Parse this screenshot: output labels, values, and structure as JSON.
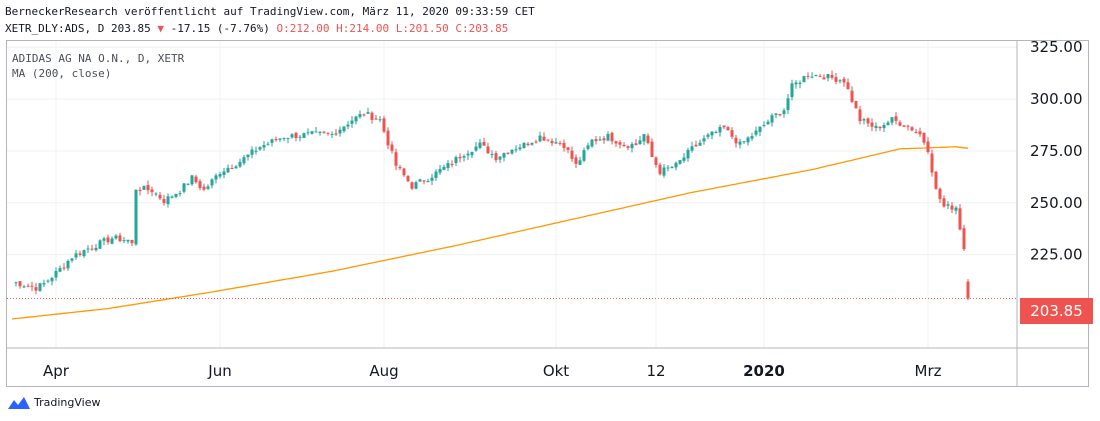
{
  "header": {
    "line1": "BerneckerResearch veröffentlicht auf TradingView.com, März 11, 2020 09:33:59 CET",
    "symbol_info": "XETR_DLY:ADS, D 203.85",
    "change": "-17.15 (-7.76%)",
    "ohlc": "O:212.00 H:214.00 L:201.50 C:203.85"
  },
  "legend": {
    "instrument": "ADIDAS AG NA O.N., D, XETR",
    "indicator": "MA (200, close)"
  },
  "last_price": "203.85",
  "brand": "TradingView",
  "colors": {
    "up": "#26a69a",
    "down": "#ef5350",
    "ma": "#ff9800",
    "last_price": "#ef5350"
  },
  "chart_data": {
    "type": "candlestick",
    "ylim": [
      180,
      328
    ],
    "yticks": [
      325,
      300,
      275,
      250,
      225
    ],
    "y_tick_labels": [
      "325.00",
      "300.00",
      "275.00",
      "250.00",
      "225.00"
    ],
    "x_tick_labels": [
      "Apr",
      "Jun",
      "Aug",
      "Okt",
      "12",
      "2020",
      "Mrz"
    ],
    "x_tick_positions": [
      11,
      52,
      93,
      136,
      161,
      188,
      229
    ],
    "n_candles": 240,
    "close_anchors": [
      [
        0,
        212
      ],
      [
        6,
        209
      ],
      [
        8,
        211
      ],
      [
        12,
        218
      ],
      [
        15,
        224
      ],
      [
        19,
        228
      ],
      [
        25,
        233
      ],
      [
        29,
        232
      ],
      [
        30,
        230
      ],
      [
        31,
        257
      ],
      [
        35,
        256
      ],
      [
        38,
        251
      ],
      [
        42,
        256
      ],
      [
        45,
        262
      ],
      [
        48,
        256
      ],
      [
        52,
        265
      ],
      [
        57,
        270
      ],
      [
        62,
        277
      ],
      [
        68,
        282
      ],
      [
        75,
        283
      ],
      [
        80,
        283
      ],
      [
        85,
        290
      ],
      [
        88,
        293
      ],
      [
        92,
        290
      ],
      [
        96,
        268
      ],
      [
        100,
        258
      ],
      [
        104,
        262
      ],
      [
        109,
        268
      ],
      [
        113,
        274
      ],
      [
        117,
        278
      ],
      [
        121,
        272
      ],
      [
        125,
        276
      ],
      [
        128,
        278
      ],
      [
        132,
        282
      ],
      [
        135,
        280
      ],
      [
        138,
        278
      ],
      [
        141,
        268
      ],
      [
        145,
        280
      ],
      [
        149,
        282
      ],
      [
        153,
        278
      ],
      [
        156,
        278
      ],
      [
        158,
        283
      ],
      [
        160,
        272
      ],
      [
        162,
        265
      ],
      [
        166,
        268
      ],
      [
        170,
        276
      ],
      [
        174,
        282
      ],
      [
        178,
        286
      ],
      [
        182,
        278
      ],
      [
        186,
        284
      ],
      [
        190,
        291
      ],
      [
        193,
        295
      ],
      [
        195,
        306
      ],
      [
        199,
        312
      ],
      [
        203,
        311
      ],
      [
        208,
        309
      ],
      [
        212,
        290
      ],
      [
        216,
        286
      ],
      [
        220,
        290
      ],
      [
        224,
        287
      ],
      [
        227,
        283
      ],
      [
        229,
        276
      ],
      [
        231,
        256
      ],
      [
        233,
        248
      ],
      [
        236,
        248
      ],
      [
        238,
        228
      ],
      [
        239,
        221
      ],
      [
        240,
        204
      ]
    ],
    "ma_anchors": [
      [
        0,
        194
      ],
      [
        24,
        199
      ],
      [
        50,
        207
      ],
      [
        80,
        217
      ],
      [
        110,
        229
      ],
      [
        140,
        242
      ],
      [
        170,
        255
      ],
      [
        200,
        266
      ],
      [
        222,
        276
      ],
      [
        236,
        277
      ],
      [
        240,
        276
      ]
    ],
    "last_value": 203.85
  }
}
